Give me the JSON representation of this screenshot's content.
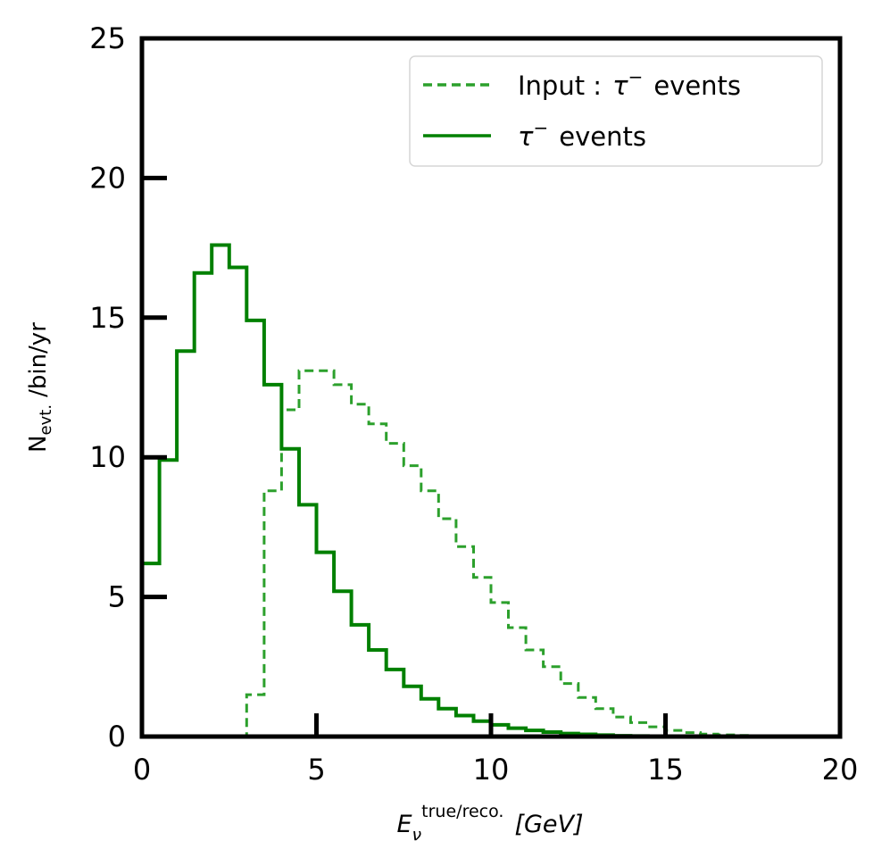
{
  "chart_data": {
    "type": "step",
    "title": "",
    "xlabel": {
      "symbol": "E",
      "subscript": "ν",
      "superscript": "true/reco.",
      "unit": "[GeV]"
    },
    "ylabel": {
      "main": "N",
      "subscript": "evt.",
      "suffix": "/bin/yr"
    },
    "xlim": [
      0,
      20
    ],
    "ylim": [
      0,
      25
    ],
    "xticks": [
      0,
      5,
      10,
      15,
      20
    ],
    "yticks": [
      0,
      5,
      10,
      15,
      20,
      25
    ],
    "grid": false,
    "legend_position": "top-right",
    "bin_edges": [
      0,
      0.5,
      1,
      1.5,
      2,
      2.5,
      3,
      3.5,
      4,
      4.5,
      5,
      5.5,
      6,
      6.5,
      7,
      7.5,
      8,
      8.5,
      9,
      9.5,
      10,
      10.5,
      11,
      11.5,
      12,
      12.5,
      13,
      13.5,
      14,
      14.5,
      15,
      15.5,
      16,
      16.5,
      17,
      17.5,
      18
    ],
    "series": [
      {
        "name": "Input : τ⁻ events",
        "label_prefix": "Input :",
        "label_particle": "τ",
        "label_charge": "−",
        "label_suffix": "events",
        "style": "dashed",
        "color": "#2ca02c",
        "values": [
          0,
          0,
          0,
          0,
          0,
          0,
          1.5,
          8.8,
          11.7,
          13.1,
          13.1,
          12.6,
          11.9,
          11.2,
          10.5,
          9.7,
          8.8,
          7.8,
          6.8,
          5.7,
          4.8,
          3.9,
          3.1,
          2.5,
          1.9,
          1.4,
          1.0,
          0.7,
          0.5,
          0.35,
          0.22,
          0.14,
          0.09,
          0.06,
          0.04,
          0.02
        ]
      },
      {
        "name": "τ⁻ events",
        "label_prefix": "",
        "label_particle": "τ",
        "label_charge": "−",
        "label_suffix": "events",
        "style": "solid",
        "color": "#008000",
        "values": [
          6.2,
          9.9,
          13.8,
          16.6,
          17.6,
          16.8,
          14.9,
          12.6,
          10.3,
          8.3,
          6.6,
          5.2,
          4.0,
          3.1,
          2.4,
          1.8,
          1.35,
          1.0,
          0.75,
          0.55,
          0.42,
          0.3,
          0.22,
          0.16,
          0.11,
          0.08,
          0.05,
          0.03,
          0.02,
          0.01,
          0,
          0,
          0,
          0,
          0,
          0
        ]
      }
    ]
  }
}
